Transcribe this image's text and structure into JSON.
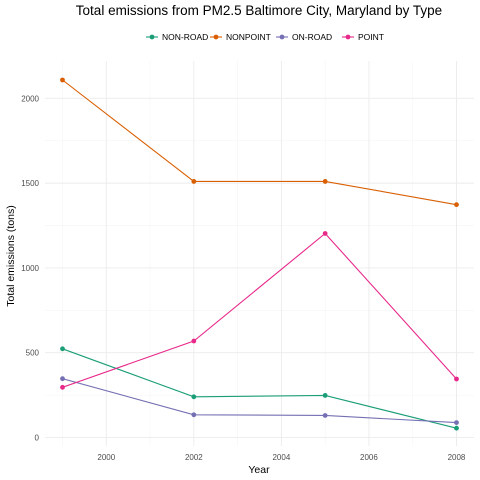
{
  "chart_data": {
    "type": "line",
    "title": "Total emissions from PM2.5 Baltimore City, Maryland by Type",
    "xlabel": "Year",
    "ylabel": "Total emissions (tons)",
    "x": [
      1999,
      2002,
      2005,
      2008
    ],
    "xlim": [
      1998.6,
      2008.4
    ],
    "ylim": [
      -50,
      2220
    ],
    "x_ticks": [
      2000,
      2002,
      2004,
      2006,
      2008
    ],
    "y_ticks": [
      0,
      500,
      1000,
      1500,
      2000
    ],
    "grid": true,
    "legend_position": "top",
    "series": [
      {
        "name": "NON-ROAD",
        "color": "#1b9e77",
        "values": [
          523,
          240,
          248,
          55
        ]
      },
      {
        "name": "NONPOINT",
        "color": "#d95f02",
        "values": [
          2108,
          1510,
          1510,
          1373
        ]
      },
      {
        "name": "ON-ROAD",
        "color": "#7570b3",
        "values": [
          347,
          134,
          130,
          88
        ]
      },
      {
        "name": "POINT",
        "color": "#e7298a",
        "values": [
          296,
          569,
          1203,
          345
        ]
      }
    ]
  }
}
